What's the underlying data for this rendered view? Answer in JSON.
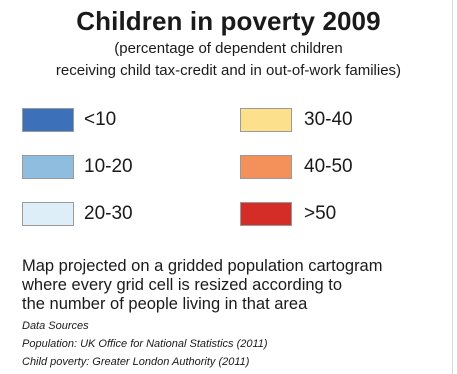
{
  "title": "Children in poverty 2009",
  "subtitle_line1": "(percentage of dependent children",
  "subtitle_line2": "receiving child tax-credit and in out-of-work families)",
  "legend": [
    {
      "label": "<10",
      "color": "#3c70b8"
    },
    {
      "label": "10-20",
      "color": "#8ebde0"
    },
    {
      "label": "20-30",
      "color": "#ddeef9"
    },
    {
      "label": "30-40",
      "color": "#fde08c"
    },
    {
      "label": "40-50",
      "color": "#f4915a"
    },
    {
      "label": ">50",
      "color": "#d42d27"
    }
  ],
  "note_lines": [
    "Map projected on a gridded population cartogram",
    "where every grid cell is resized according to",
    "the number of people living in that area"
  ],
  "sources_title": "Data Sources",
  "source_population": "Population: UK Office for National Statistics (2011)",
  "source_poverty": "Child poverty: Greater London Authority (2011)"
}
